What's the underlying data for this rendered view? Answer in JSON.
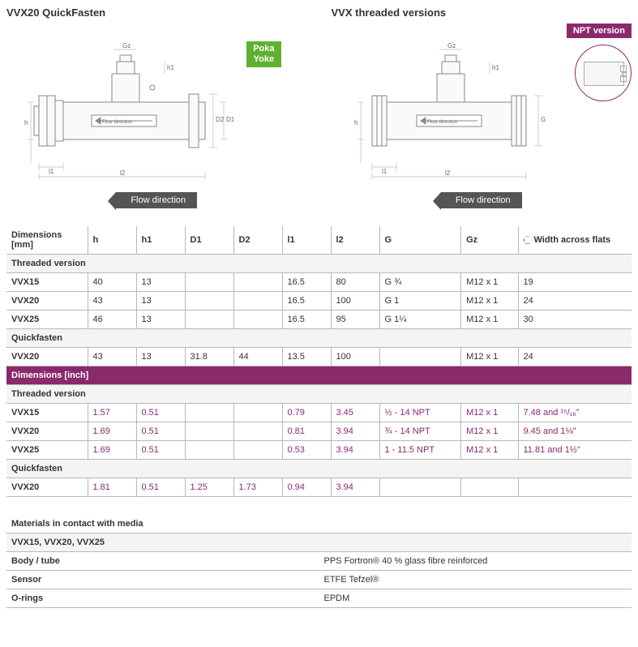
{
  "headings": {
    "left": "VVX20 QuickFasten",
    "right": "VVX threaded versions"
  },
  "badges": {
    "poka1": "Poka",
    "poka2": "Yoke",
    "npt": "NPT version"
  },
  "flow_label": "Flow direction",
  "drawing": {
    "labels": {
      "gz": "Gz",
      "h": "h",
      "h1": "h1",
      "d1": "D1",
      "d2": "D2",
      "l1": "l1",
      "l2": "l2",
      "g": "G",
      "flow": "Flow direction"
    },
    "stroke": "#888",
    "thin_stroke": "#bbb",
    "fill": "#fafafa"
  },
  "dim_table": {
    "header": [
      "Dimensions [mm]",
      "h",
      "h1",
      "D1",
      "D2",
      "l1",
      "l2",
      "G",
      "Gz",
      "Width across flats"
    ],
    "sections": [
      {
        "title": "Threaded version",
        "rows": [
          [
            "VVX15",
            "40",
            "13",
            "",
            "",
            "16.5",
            "80",
            "G ¾",
            "M12 x 1",
            "19"
          ],
          [
            "VVX20",
            "43",
            "13",
            "",
            "",
            "16.5",
            "100",
            "G 1",
            "M12 x 1",
            "24"
          ],
          [
            "VVX25",
            "46",
            "13",
            "",
            "",
            "16.5",
            "95",
            "G 1¼",
            "M12 x 1",
            "30"
          ]
        ]
      },
      {
        "title": "Quickfasten",
        "rows": [
          [
            "VVX20",
            "43",
            "13",
            "31.8",
            "44",
            "13.5",
            "100",
            "",
            "M12 x 1",
            "24"
          ]
        ]
      }
    ],
    "inch_header": "Dimensions [inch]",
    "inch_sections": [
      {
        "title": "Threaded version",
        "rows": [
          [
            "VVX15",
            "1.57",
            "0.51",
            "",
            "",
            "0.79",
            "3.45",
            "½ - 14 NPT",
            "M12 x 1",
            "7.48 and ¹⁵/₁₆\""
          ],
          [
            "VVX20",
            "1.69",
            "0.51",
            "",
            "",
            "0.81",
            "3.94",
            "¾ - 14 NPT",
            "M12 x 1",
            "9.45 and 1⅛\""
          ],
          [
            "VVX25",
            "1.69",
            "0.51",
            "",
            "",
            "0.53",
            "3.94",
            "1 - 11.5 NPT",
            "M12 x 1",
            "11.81 and 1½\""
          ]
        ]
      },
      {
        "title": "Quickfasten",
        "rows": [
          [
            "VVX20",
            "1.81",
            "0.51",
            "1.25",
            "1.73",
            "0.94",
            "3.94",
            "",
            "",
            ""
          ]
        ]
      }
    ]
  },
  "materials": {
    "title": "Materials in contact with media",
    "sub": "VVX15, VVX20, VVX25",
    "rows": [
      [
        "Body / tube",
        "PPS Fortron® 40 % glass fibre reinforced"
      ],
      [
        "Sensor",
        "ETFE Tefzel®"
      ],
      [
        "O-rings",
        "EPDM"
      ]
    ]
  }
}
